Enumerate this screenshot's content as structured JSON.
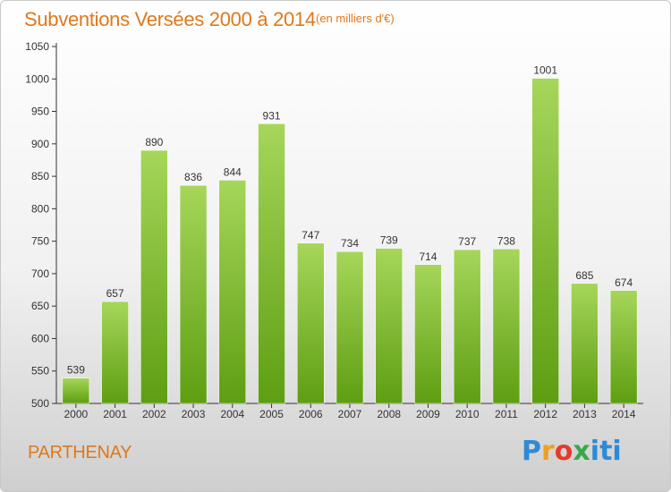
{
  "header": {
    "title": "Subventions Versées 2000 à 2014",
    "unit_note": "(en milliers d'€)"
  },
  "footer": {
    "location": "PARTHENAY",
    "brand": "Proxiti"
  },
  "colors": {
    "accent": "#e0781a",
    "bar_top": "#a6d65a",
    "bar_bottom": "#5e9e12"
  },
  "chart_data": {
    "type": "bar",
    "title": "Subventions Versées 2000 à 2014",
    "subtitle": "(en milliers d'€)",
    "xlabel": "",
    "ylabel": "",
    "categories": [
      "2000",
      "2001",
      "2002",
      "2003",
      "2004",
      "2005",
      "2006",
      "2007",
      "2008",
      "2009",
      "2010",
      "2011",
      "2012",
      "2013",
      "2014"
    ],
    "values": [
      539,
      657,
      890,
      836,
      844,
      931,
      747,
      734,
      739,
      714,
      737,
      738,
      1001,
      685,
      674
    ],
    "ylim": [
      500,
      1050
    ],
    "yticks": [
      500,
      550,
      600,
      650,
      700,
      750,
      800,
      850,
      900,
      950,
      1000,
      1050
    ],
    "grid": false,
    "data_labels": true
  }
}
